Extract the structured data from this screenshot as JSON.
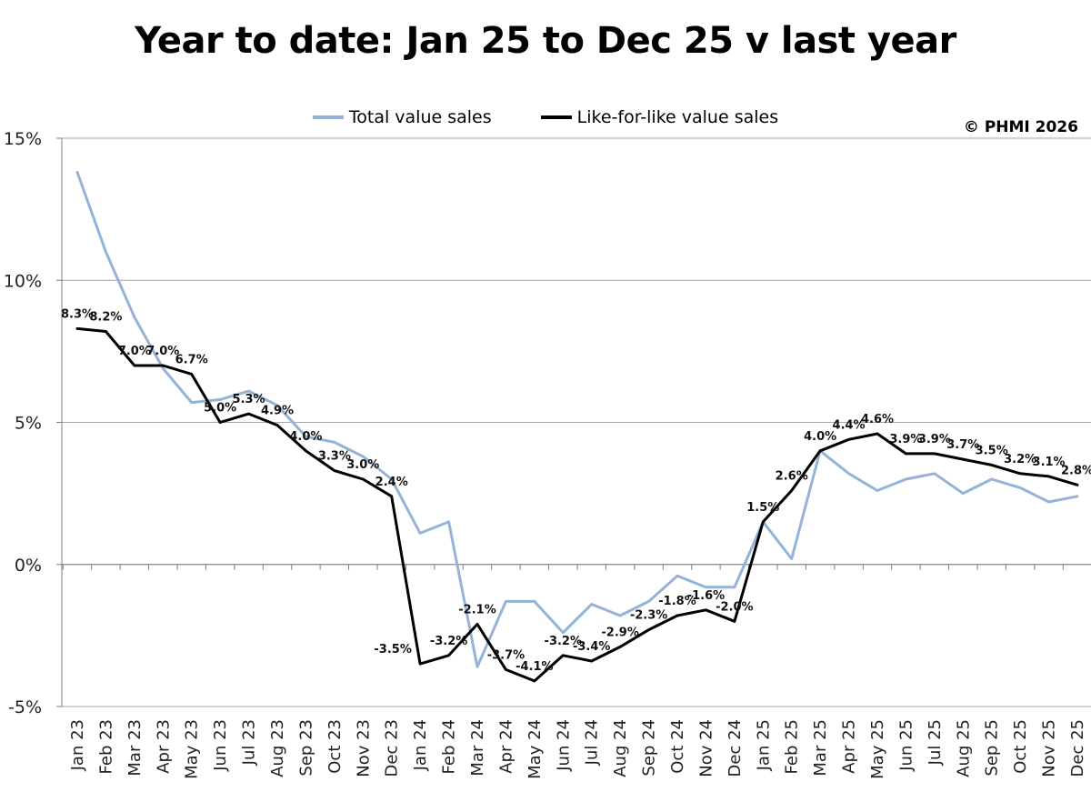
{
  "title": "Year to date: Jan 25 to Dec 25 v last year",
  "copyright": "© PHMI 2026",
  "colors": {
    "total": "#95b3d7",
    "lfl": "#000000",
    "grid": "#a6a6a6"
  },
  "chart_data": {
    "type": "line",
    "title": "Year to date: Jan 25 to Dec 25 v last year",
    "xlabel": "",
    "ylabel": "",
    "ylim": [
      -5,
      15
    ],
    "y_ticks": [
      -5,
      0,
      5,
      10,
      15
    ],
    "y_tick_labels": [
      "-5%",
      "0%",
      "5%",
      "10%",
      "15%"
    ],
    "grid": "horizontal",
    "legend_position": "top-center",
    "categories": [
      "Jan 23",
      "Feb 23",
      "Mar 23",
      "Apr 23",
      "May 23",
      "Jun 23",
      "Jul 23",
      "Aug 23",
      "Sep 23",
      "Oct 23",
      "Nov 23",
      "Dec 23",
      "Jan 24",
      "Feb 24",
      "Mar 24",
      "Apr 24",
      "May 24",
      "Jun 24",
      "Jul 24",
      "Aug 24",
      "Sep 24",
      "Oct 24",
      "Nov 24",
      "Dec 24",
      "Jan 25",
      "Feb 25",
      "Mar 25",
      "Apr 25",
      "May 25",
      "Jun 25",
      "Jul 25",
      "Aug 25",
      "Sep 25",
      "Oct 25",
      "Nov 25",
      "Dec 25"
    ],
    "series": [
      {
        "name": "Total value sales",
        "values": [
          13.8,
          11.0,
          8.7,
          6.9,
          5.7,
          5.8,
          6.1,
          5.6,
          4.5,
          4.3,
          3.8,
          3.0,
          1.1,
          1.5,
          -3.6,
          -1.3,
          -1.3,
          -2.4,
          -1.4,
          -1.8,
          -1.3,
          -0.4,
          -0.8,
          -0.8,
          1.5,
          0.2,
          4.0,
          3.2,
          2.6,
          3.0,
          3.2,
          2.5,
          3.0,
          2.7,
          2.2,
          2.4
        ],
        "labels": []
      },
      {
        "name": "Like-for-like value sales",
        "values": [
          8.3,
          8.2,
          7.0,
          7.0,
          6.7,
          5.0,
          5.3,
          4.9,
          4.0,
          3.3,
          3.0,
          2.4,
          -3.5,
          -3.2,
          -2.1,
          -3.7,
          -4.1,
          -3.2,
          -3.4,
          -2.9,
          -2.3,
          -1.8,
          -1.6,
          -2.0,
          1.5,
          2.6,
          4.0,
          4.4,
          4.6,
          3.9,
          3.9,
          3.7,
          3.5,
          3.2,
          3.1,
          2.8
        ],
        "labels": [
          "8.3%",
          "8.2%",
          "7.0%",
          "7.0%",
          "6.7%",
          "5.0%",
          "5.3%",
          "4.9%",
          "4.0%",
          "3.3%",
          "3.0%",
          "2.4%",
          "-3.5%",
          "-3.2%",
          "-2.1%",
          "-3.7%",
          "-4.1%",
          "-3.2%",
          "-3.4%",
          "-2.9%",
          "-2.3%",
          "-1.8%",
          "-1.6%",
          "-2.0%",
          "1.5%",
          "2.6%",
          "4.0%",
          "4.4%",
          "4.6%",
          "3.9%",
          "3.9%",
          "3.7%",
          "3.5%",
          "3.2%",
          "3.1%",
          "2.8%"
        ]
      }
    ]
  }
}
